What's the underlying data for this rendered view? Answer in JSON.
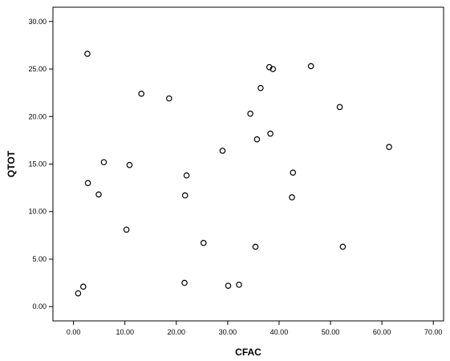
{
  "chart_data": {
    "type": "scatter",
    "title": "",
    "xlabel": "CFAC",
    "ylabel": "QTOT",
    "xlim": [
      -4,
      72
    ],
    "ylim": [
      -1.5,
      31.5
    ],
    "x_ticks": [
      0,
      10,
      20,
      30,
      40,
      50,
      60,
      70
    ],
    "y_ticks": [
      0,
      5,
      10,
      15,
      20,
      25,
      30
    ],
    "x_tick_labels": [
      "0.00",
      "10.00",
      "20.00",
      "30.00",
      "40.00",
      "50.00",
      "60.00",
      "70.00"
    ],
    "y_tick_labels": [
      "0.00",
      "5.00",
      "10.00",
      "15.00",
      "20.00",
      "25.00",
      "30.00"
    ],
    "grid": false,
    "marker": "hollow-circle",
    "colors": {
      "marker_stroke": "#000000",
      "frame": "#000000",
      "background": "#ffffff"
    },
    "points": [
      {
        "x": 2.7,
        "y": 26.6
      },
      {
        "x": 13.2,
        "y": 22.4
      },
      {
        "x": 18.6,
        "y": 21.9
      },
      {
        "x": 38.1,
        "y": 25.2
      },
      {
        "x": 38.8,
        "y": 25.0
      },
      {
        "x": 46.2,
        "y": 25.3
      },
      {
        "x": 36.4,
        "y": 23.0
      },
      {
        "x": 34.4,
        "y": 20.3
      },
      {
        "x": 51.8,
        "y": 21.0
      },
      {
        "x": 38.3,
        "y": 18.2
      },
      {
        "x": 35.7,
        "y": 17.6
      },
      {
        "x": 29.0,
        "y": 16.4
      },
      {
        "x": 61.4,
        "y": 16.8
      },
      {
        "x": 5.9,
        "y": 15.2
      },
      {
        "x": 10.9,
        "y": 14.9
      },
      {
        "x": 22.0,
        "y": 13.8
      },
      {
        "x": 42.7,
        "y": 14.1
      },
      {
        "x": 2.8,
        "y": 13.0
      },
      {
        "x": 4.9,
        "y": 11.8
      },
      {
        "x": 21.7,
        "y": 11.7
      },
      {
        "x": 42.5,
        "y": 11.5
      },
      {
        "x": 10.3,
        "y": 8.1
      },
      {
        "x": 25.3,
        "y": 6.7
      },
      {
        "x": 35.4,
        "y": 6.3
      },
      {
        "x": 52.4,
        "y": 6.3
      },
      {
        "x": 21.6,
        "y": 2.5
      },
      {
        "x": 30.1,
        "y": 2.2
      },
      {
        "x": 32.2,
        "y": 2.3
      },
      {
        "x": 1.9,
        "y": 2.1
      },
      {
        "x": 0.9,
        "y": 1.4
      }
    ]
  }
}
